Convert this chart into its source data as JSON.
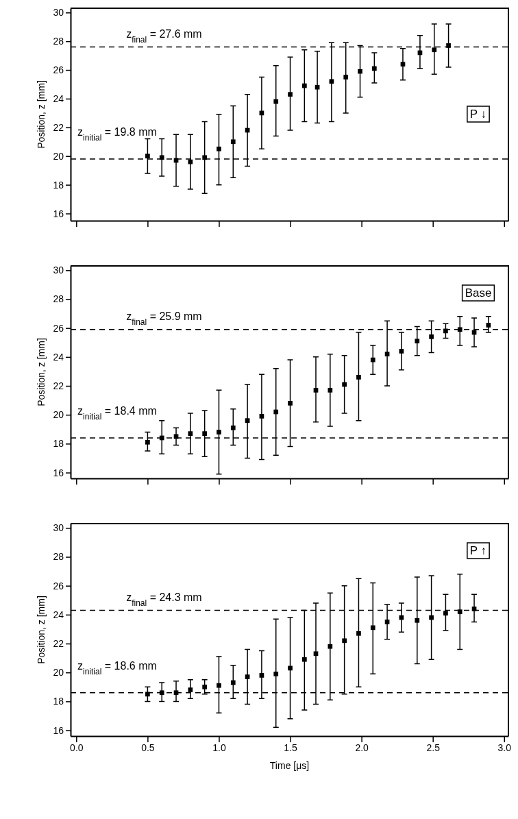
{
  "chart_data": [
    {
      "type": "scatter",
      "ylabel": "Position, z [mm]",
      "xlim": [
        -0.04,
        3.03
      ],
      "xticks": [
        {
          "value": 0,
          "label": null
        },
        {
          "value": 0.5,
          "label": null
        },
        {
          "value": 1,
          "label": null
        },
        {
          "value": 1.5,
          "label": null
        },
        {
          "value": 2,
          "label": null
        },
        {
          "value": 2.5,
          "label": null
        },
        {
          "value": 3,
          "label": null
        }
      ],
      "ylim": [
        15.5,
        30.3
      ],
      "yticks": [
        16,
        18,
        20,
        22,
        24,
        26,
        28,
        30
      ],
      "tick_labels": "y",
      "marker": "square",
      "grid": false,
      "x": [
        0.5,
        0.6,
        0.7,
        0.8,
        0.9,
        1.0,
        1.1,
        1.2,
        1.3,
        1.4,
        1.5,
        1.6,
        1.69,
        1.79,
        1.89,
        1.99,
        2.09,
        2.29,
        2.41,
        2.51,
        2.61
      ],
      "series": [
        {
          "color": "#000000",
          "values": [
            20.0,
            19.9,
            19.7,
            19.6,
            19.9,
            20.5,
            21.0,
            21.8,
            23.0,
            23.8,
            24.3,
            24.9,
            24.8,
            25.2,
            25.5,
            25.9,
            26.1,
            26.4,
            27.2,
            27.4,
            27.7
          ],
          "errors": [
            [
              18.8,
              21.2
            ],
            [
              18.6,
              21.2
            ],
            [
              17.9,
              21.5
            ],
            [
              17.7,
              21.5
            ],
            [
              17.4,
              22.4
            ],
            [
              18.0,
              22.9
            ],
            [
              18.5,
              23.5
            ],
            [
              19.3,
              24.3
            ],
            [
              20.5,
              25.5
            ],
            [
              21.4,
              26.3
            ],
            [
              21.8,
              26.9
            ],
            [
              22.4,
              27.4
            ],
            [
              22.3,
              27.3
            ],
            [
              22.4,
              27.9
            ],
            [
              23.0,
              27.9
            ],
            [
              24.1,
              27.7
            ],
            [
              25.1,
              27.2
            ],
            [
              25.3,
              27.5
            ],
            [
              26.1,
              28.4
            ],
            [
              25.7,
              29.2
            ],
            [
              26.2,
              29.2
            ]
          ]
        }
      ],
      "ref_lines": [
        {
          "axis": "y",
          "value": 27.6,
          "label": "z$_{final}$ = 27.6 mm",
          "line_style": "dashed"
        },
        {
          "axis": "y",
          "value": 19.8,
          "label": "z$_{initial}$ = 19.8 mm",
          "line_style": "dashed"
        }
      ],
      "annotations": [
        "P ↓"
      ]
    },
    {
      "type": "scatter",
      "ylabel": "Position, z [mm]",
      "xlim": [
        -0.04,
        3.03
      ],
      "xticks": [
        {
          "value": 0,
          "label": null
        },
        {
          "value": 0.5,
          "label": null
        },
        {
          "value": 1,
          "label": null
        },
        {
          "value": 1.5,
          "label": null
        },
        {
          "value": 2,
          "label": null
        },
        {
          "value": 2.5,
          "label": null
        },
        {
          "value": 3,
          "label": null
        }
      ],
      "ylim": [
        15.6,
        30.3
      ],
      "yticks": [
        16,
        18,
        20,
        22,
        24,
        26,
        28,
        30
      ],
      "tick_labels": "y",
      "marker": "square",
      "grid": false,
      "x": [
        0.5,
        0.6,
        0.7,
        0.8,
        0.9,
        1.0,
        1.1,
        1.2,
        1.3,
        1.4,
        1.5,
        1.68,
        1.78,
        1.88,
        1.98,
        2.08,
        2.18,
        2.28,
        2.39,
        2.49,
        2.59,
        2.69,
        2.79,
        2.89
      ],
      "series": [
        {
          "color": "#000000",
          "values": [
            18.1,
            18.4,
            18.5,
            18.7,
            18.7,
            18.8,
            19.1,
            19.6,
            19.9,
            20.2,
            20.8,
            21.7,
            21.7,
            22.1,
            22.6,
            23.8,
            24.2,
            24.4,
            25.1,
            25.4,
            25.8,
            25.9,
            25.7,
            26.2
          ],
          "errors": [
            [
              17.5,
              18.8
            ],
            [
              17.3,
              19.6
            ],
            [
              17.9,
              19.1
            ],
            [
              17.3,
              20.1
            ],
            [
              17.1,
              20.3
            ],
            [
              15.9,
              21.7
            ],
            [
              17.9,
              20.4
            ],
            [
              17.0,
              22.1
            ],
            [
              16.9,
              22.8
            ],
            [
              17.2,
              23.2
            ],
            [
              17.8,
              23.8
            ],
            [
              19.5,
              24.0
            ],
            [
              19.2,
              24.2
            ],
            [
              20.1,
              24.1
            ],
            [
              19.6,
              25.7
            ],
            [
              22.8,
              24.8
            ],
            [
              22.0,
              26.5
            ],
            [
              23.1,
              25.7
            ],
            [
              24.1,
              26.1
            ],
            [
              24.3,
              26.5
            ],
            [
              25.3,
              26.3
            ],
            [
              24.8,
              26.8
            ],
            [
              24.7,
              26.7
            ],
            [
              25.7,
              26.8
            ]
          ]
        }
      ],
      "ref_lines": [
        {
          "axis": "y",
          "value": 25.9,
          "label": "z$_{final}$ = 25.9 mm",
          "line_style": "dashed"
        },
        {
          "axis": "y",
          "value": 18.4,
          "label": "z$_{initial}$ = 18.4 mm",
          "line_style": "dashed"
        }
      ],
      "annotations": [
        "Base"
      ]
    },
    {
      "type": "scatter",
      "xlabel": "Time [μs]",
      "ylabel": "Position, z [mm]",
      "xlim": [
        -0.04,
        3.03
      ],
      "xticks": [
        {
          "value": 0,
          "label": "0.0"
        },
        {
          "value": 0.5,
          "label": "0.5"
        },
        {
          "value": 1,
          "label": "1.0"
        },
        {
          "value": 1.5,
          "label": "1.5"
        },
        {
          "value": 2,
          "label": "2.0"
        },
        {
          "value": 2.5,
          "label": "2.5"
        },
        {
          "value": 3,
          "label": "3.0"
        }
      ],
      "ylim": [
        15.6,
        30.3
      ],
      "yticks": [
        16,
        18,
        20,
        22,
        24,
        26,
        28,
        30
      ],
      "marker": "square",
      "grid": false,
      "x": [
        0.5,
        0.6,
        0.7,
        0.8,
        0.9,
        1.0,
        1.1,
        1.2,
        1.3,
        1.4,
        1.5,
        1.6,
        1.68,
        1.78,
        1.88,
        1.98,
        2.08,
        2.18,
        2.28,
        2.39,
        2.49,
        2.59,
        2.69,
        2.79
      ],
      "series": [
        {
          "color": "#000000",
          "values": [
            18.5,
            18.6,
            18.6,
            18.8,
            19.0,
            19.1,
            19.3,
            19.7,
            19.8,
            19.9,
            20.3,
            20.9,
            21.3,
            21.8,
            22.2,
            22.7,
            23.1,
            23.5,
            23.8,
            23.6,
            23.8,
            24.1,
            24.2,
            24.4
          ],
          "errors": [
            [
              18.0,
              19.0
            ],
            [
              18.0,
              19.3
            ],
            [
              18.0,
              19.4
            ],
            [
              18.2,
              19.5
            ],
            [
              18.5,
              19.5
            ],
            [
              17.2,
              21.1
            ],
            [
              18.2,
              20.5
            ],
            [
              17.8,
              21.6
            ],
            [
              18.2,
              21.5
            ],
            [
              16.2,
              23.7
            ],
            [
              16.8,
              23.8
            ],
            [
              17.4,
              24.3
            ],
            [
              17.8,
              24.8
            ],
            [
              18.1,
              25.5
            ],
            [
              18.5,
              26.0
            ],
            [
              19.0,
              26.5
            ],
            [
              19.9,
              26.2
            ],
            [
              22.3,
              24.7
            ],
            [
              22.8,
              24.8
            ],
            [
              20.6,
              26.6
            ],
            [
              20.9,
              26.7
            ],
            [
              22.9,
              25.4
            ],
            [
              21.6,
              26.8
            ],
            [
              23.5,
              25.4
            ]
          ]
        }
      ],
      "ref_lines": [
        {
          "axis": "y",
          "value": 24.3,
          "label": "z$_{final}$ = 24.3 mm",
          "line_style": "dashed"
        },
        {
          "axis": "y",
          "value": 18.6,
          "label": "z$_{initial}$ = 18.6 mm",
          "line_style": "dashed"
        }
      ],
      "annotations": [
        "P ↑"
      ]
    }
  ]
}
